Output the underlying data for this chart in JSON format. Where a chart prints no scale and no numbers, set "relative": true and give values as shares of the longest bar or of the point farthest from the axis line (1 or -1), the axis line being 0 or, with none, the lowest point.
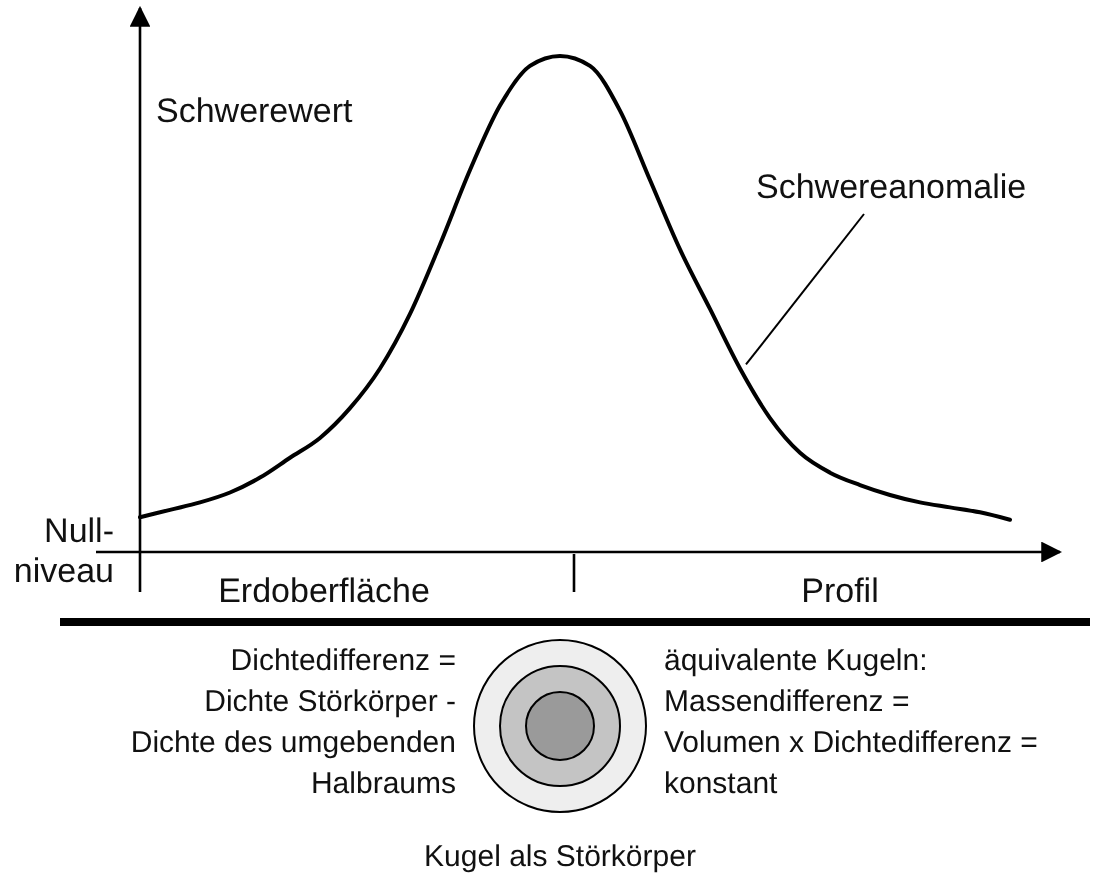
{
  "chart_data": {
    "type": "line",
    "relative": true,
    "ylabel": "Schwerewert",
    "xlabel": "Profil",
    "categories": [
      null,
      null,
      null,
      null,
      null,
      null,
      null,
      null,
      null,
      null,
      null,
      null,
      null,
      null,
      null,
      null,
      null,
      null,
      null,
      null,
      null,
      null,
      null,
      null,
      null,
      null,
      null,
      null,
      null,
      null
    ],
    "series": [
      {
        "name": "Schwereanomalie",
        "color": "#000000",
        "values": [
          0.07,
          0.085,
          0.1,
          0.12,
          0.15,
          0.19,
          0.23,
          0.29,
          0.37,
          0.48,
          0.62,
          0.77,
          0.9,
          0.98,
          1.0,
          0.98,
          0.89,
          0.75,
          0.61,
          0.49,
          0.37,
          0.27,
          0.2,
          0.16,
          0.135,
          0.115,
          0.1,
          0.09,
          0.08,
          0.065
        ]
      }
    ],
    "marker": "none",
    "line_style": "solid",
    "annotations": [
      "Null-\nniveau",
      "Erdoberfläche",
      "Dichtedifferenz =\nDichte Störkörper -\nDichte des umgebenden\nHalbraums",
      "äquivalente Kugeln:\nMassendifferenz =\nVolumen x Dichtedifferenz =\nkonstant",
      "Kugel als Störkörper"
    ]
  }
}
